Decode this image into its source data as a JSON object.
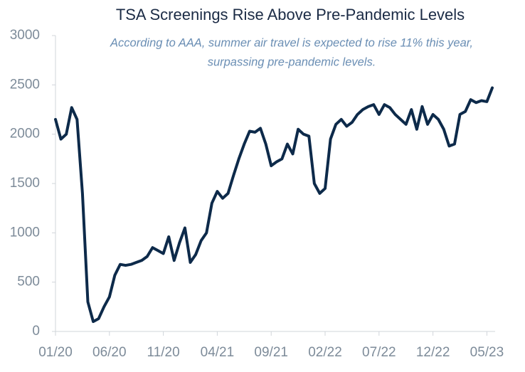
{
  "chart_data": {
    "type": "line",
    "title": "TSA Screenings Rise Above Pre-Pandemic Levels",
    "subtitle": [
      "According to AAA, summer air travel is expected to rise 11% this year,",
      "surpassing pre-pandemic levels."
    ],
    "categories": [
      "01/20",
      null,
      null,
      null,
      null,
      null,
      null,
      null,
      null,
      null,
      "06/20",
      null,
      null,
      null,
      null,
      null,
      null,
      null,
      null,
      null,
      "11/20",
      null,
      null,
      null,
      null,
      null,
      null,
      null,
      null,
      null,
      "04/21",
      null,
      null,
      null,
      null,
      null,
      null,
      null,
      null,
      null,
      "09/21",
      null,
      null,
      null,
      null,
      null,
      null,
      null,
      null,
      null,
      "02/22",
      null,
      null,
      null,
      null,
      null,
      null,
      null,
      null,
      null,
      "07/22",
      null,
      null,
      null,
      null,
      null,
      null,
      null,
      null,
      null,
      "12/22",
      null,
      null,
      null,
      null,
      null,
      null,
      null,
      null,
      null,
      "05/23",
      null
    ],
    "series": [
      {
        "color": "#0d2a4a",
        "values": [
          2150,
          1950,
          2000,
          2270,
          2150,
          1400,
          300,
          100,
          130,
          250,
          350,
          570,
          680,
          670,
          680,
          700,
          720,
          760,
          850,
          820,
          790,
          960,
          720,
          900,
          1050,
          700,
          780,
          920,
          1000,
          1300,
          1420,
          1350,
          1400,
          1580,
          1750,
          1900,
          2030,
          2020,
          2060,
          1900,
          1680,
          1720,
          1750,
          1900,
          1800,
          2050,
          2000,
          1980,
          1500,
          1400,
          1450,
          1950,
          2100,
          2150,
          2080,
          2120,
          2200,
          2250,
          2280,
          2300,
          2200,
          2300,
          2270,
          2200,
          2150,
          2100,
          2250,
          2050,
          2280,
          2100,
          2200,
          2150,
          2050,
          1880,
          1900,
          2200,
          2230,
          2350,
          2320,
          2340,
          2330,
          2470
        ]
      }
    ],
    "ylim": [
      0,
      3000
    ],
    "yticks": [
      0,
      500,
      1000,
      1500,
      2000,
      2500,
      3000
    ],
    "grid": false
  }
}
